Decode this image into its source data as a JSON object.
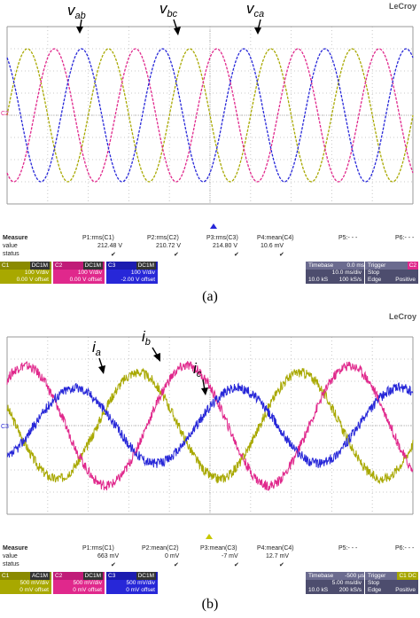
{
  "panel_a": {
    "brand": "LeCroy",
    "ground_marker": "C2",
    "waveform_labels": {
      "first": "v",
      "first_sub": "ab",
      "second": "v",
      "second_sub": "bc",
      "third": "v",
      "third_sub": "ca"
    },
    "measure": {
      "header": "Measure",
      "row_value": "value",
      "row_status": "status",
      "params": [
        "P1:rms(C1)",
        "P2:rms(C2)",
        "P3:rms(C3)",
        "P4:mean(C4)",
        "P5:- - -",
        "P6:- - -"
      ],
      "values": [
        "212.48 V",
        "210.72 V",
        "214.80 V",
        "10.6 mV",
        "",
        ""
      ],
      "status_check": "✔"
    },
    "channels": [
      {
        "name": "C1",
        "tag": "DC1M",
        "scale": "100 V/div",
        "offset": "0.00 V offset",
        "color": "#a8a800"
      },
      {
        "name": "C2",
        "tag": "DC1M",
        "scale": "100 V/div",
        "offset": "0.00 V offset",
        "color": "#e0288c"
      },
      {
        "name": "C3",
        "tag": "DC1M",
        "scale": "100 V/div",
        "offset": "-2.00 V offset",
        "color": "#2727d8"
      }
    ],
    "timebase": {
      "label": "Timebase",
      "value": "0.0 ms",
      "per_div": "10.0 ms/div",
      "samples": "10.0 kS",
      "rate": "100 kS/s"
    },
    "trigger": {
      "label": "Trigger",
      "badge": "C2",
      "mode": "Stop",
      "type": "Edge",
      "slope": "Positive"
    },
    "caption": "(a)",
    "chart_data": {
      "type": "line",
      "title": "",
      "xlabel": "",
      "ylabel": "",
      "grid": true,
      "xlim": [
        0,
        10
      ],
      "ylim": [
        -4,
        4
      ],
      "series": [
        {
          "name": "vab",
          "color": "#a8a800",
          "amplitude": 3.0,
          "cycles": 5,
          "phase_deg": 0
        },
        {
          "name": "vbc",
          "color": "#e0288c",
          "amplitude": 3.0,
          "cycles": 5,
          "phase_deg": -120
        },
        {
          "name": "vca",
          "color": "#2727d8",
          "amplitude": 3.0,
          "cycles": 5,
          "phase_deg": 120
        }
      ]
    }
  },
  "panel_b": {
    "brand": "LeCroy",
    "ground_marker": "C3",
    "waveform_labels": {
      "first": "i",
      "first_sub": "a",
      "second": "i",
      "second_sub": "b",
      "third": "i",
      "third_sub": "c"
    },
    "measure": {
      "header": "Measure",
      "row_value": "value",
      "row_status": "status",
      "params": [
        "P1:rms(C1)",
        "P2:mean(C2)",
        "P3:mean(C3)",
        "P4:mean(C4)",
        "P5:- - -",
        "P6:- - -"
      ],
      "values": [
        "663 mV",
        "0 mV",
        "-7 mV",
        "12.7 mV",
        "",
        ""
      ],
      "status_check": "✔"
    },
    "channels": [
      {
        "name": "C1",
        "tag": "AC1M",
        "scale": "500 mV/div",
        "offset": "0 mV offset",
        "color": "#a8a800"
      },
      {
        "name": "C2",
        "tag": "DC1M",
        "scale": "500 mV/div",
        "offset": "0 mV offset",
        "color": "#e0288c"
      },
      {
        "name": "C3",
        "tag": "DC1M",
        "scale": "500 mV/div",
        "offset": "0 mV offset",
        "color": "#2727d8"
      }
    ],
    "timebase": {
      "label": "Timebase",
      "value": "-500 µs",
      "per_div": "5.00 ms/div",
      "samples": "10.0 kS",
      "rate": "200 kS/s"
    },
    "trigger": {
      "label": "Trigger",
      "badge": "C1 DC",
      "mode": "Stop",
      "type": "Edge",
      "slope": "Positive"
    },
    "caption": "(b)",
    "chart_data": {
      "type": "line",
      "title": "",
      "xlabel": "",
      "ylabel": "",
      "grid": true,
      "xlim": [
        0,
        10
      ],
      "ylim": [
        -4,
        4
      ],
      "series": [
        {
          "name": "ia",
          "color": "#a8a800",
          "amplitude": 2.4,
          "cycles": 2.5,
          "phase_deg": -200
        },
        {
          "name": "ib",
          "color": "#e0288c",
          "amplitude": 2.7,
          "cycles": 2.5,
          "phase_deg": 50
        },
        {
          "name": "ic",
          "color": "#2727d8",
          "amplitude": 1.7,
          "cycles": 2.5,
          "phase_deg": -60
        }
      ]
    }
  }
}
